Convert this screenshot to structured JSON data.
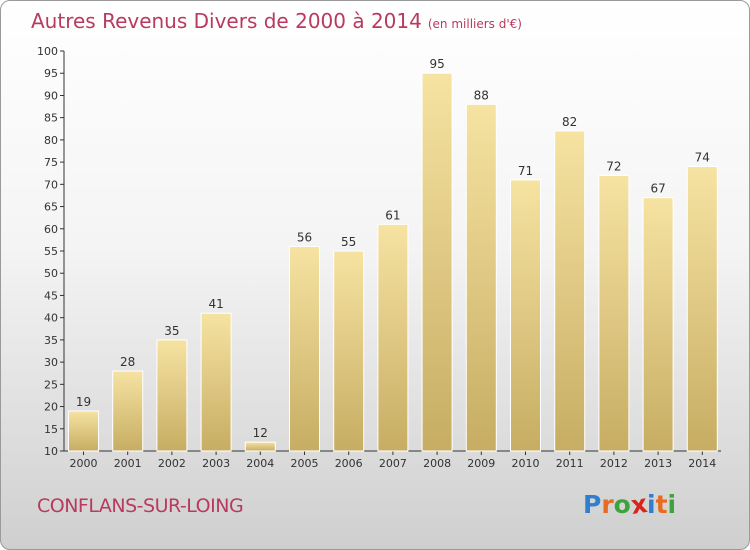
{
  "title": "Autres Revenus Divers de 2000 à 2014",
  "subtitle": "(en milliers d'€)",
  "location_label": "CONFLANS-SUR-LOING",
  "logo": {
    "text": "Proxiti",
    "letters": [
      "P",
      "r",
      "o",
      "x",
      "i",
      "t",
      "i"
    ],
    "colors": [
      "#2f7fd0",
      "#e96b1f",
      "#3da43d",
      "#d9261c",
      "#2f7fd0",
      "#e96b1f",
      "#3da43d"
    ]
  },
  "chart_data": {
    "type": "bar",
    "categories": [
      "2000",
      "2001",
      "2002",
      "2003",
      "2004",
      "2005",
      "2006",
      "2007",
      "2008",
      "2009",
      "2010",
      "2011",
      "2012",
      "2013",
      "2014"
    ],
    "values": [
      19,
      28,
      35,
      41,
      12,
      56,
      55,
      61,
      95,
      88,
      71,
      82,
      72,
      67,
      74
    ],
    "title": "Autres Revenus Divers de 2000 à 2014",
    "subtitle": "(en milliers d'€)",
    "xlabel": "",
    "ylabel": "",
    "ylim": [
      10,
      100
    ],
    "ytick_step": 5,
    "grid": false,
    "colors": {
      "bar_top": "#f6e3a2",
      "bar_bottom": "#c7ad63",
      "axis": "#333333",
      "title": "#b83a5e"
    }
  }
}
